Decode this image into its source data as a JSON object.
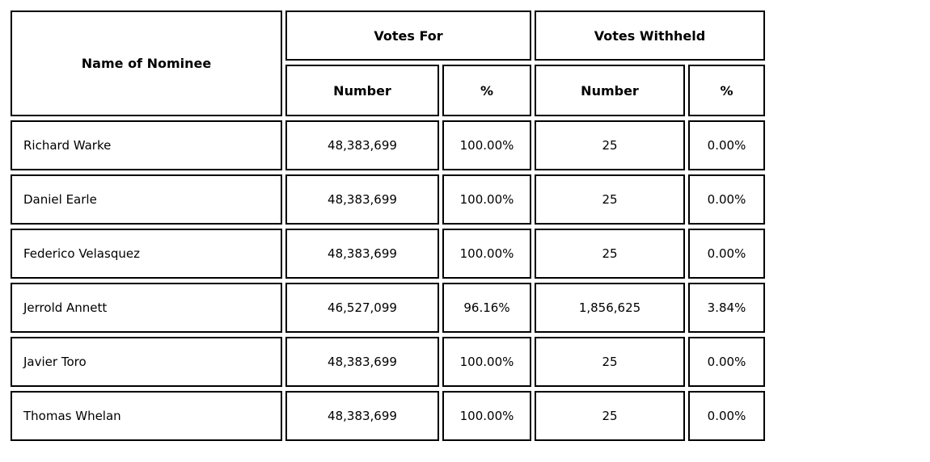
{
  "table": {
    "headers": {
      "name": "Name of Nominee",
      "votes_for": "Votes For",
      "votes_withheld": "Votes Withheld",
      "number": "Number",
      "percent": "%"
    },
    "rows": [
      {
        "name": "Richard Warke",
        "for_number": "48,383,699",
        "for_percent": "100.00%",
        "withheld_number": "25",
        "withheld_percent": "0.00%"
      },
      {
        "name": "Daniel Earle",
        "for_number": "48,383,699",
        "for_percent": "100.00%",
        "withheld_number": "25",
        "withheld_percent": "0.00%"
      },
      {
        "name": "Federico Velasquez",
        "for_number": "48,383,699",
        "for_percent": "100.00%",
        "withheld_number": "25",
        "withheld_percent": "0.00%"
      },
      {
        "name": "Jerrold Annett",
        "for_number": "46,527,099",
        "for_percent": "96.16%",
        "withheld_number": "1,856,625",
        "withheld_percent": "3.84%"
      },
      {
        "name": "Javier Toro",
        "for_number": "48,383,699",
        "for_percent": "100.00%",
        "withheld_number": "25",
        "withheld_percent": "0.00%"
      },
      {
        "name": "Thomas Whelan",
        "for_number": "48,383,699",
        "for_percent": "100.00%",
        "withheld_number": "25",
        "withheld_percent": "0.00%"
      }
    ]
  },
  "colors": {
    "border": "#000000",
    "text": "#000000",
    "background": "#ffffff"
  }
}
